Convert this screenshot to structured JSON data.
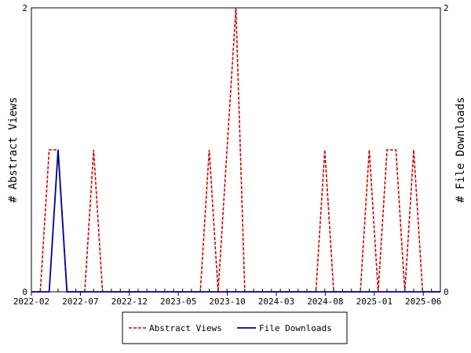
{
  "chart_data": {
    "type": "line",
    "x_tick_labels": [
      "2022-02",
      "2022-07",
      "2022-12",
      "2023-05",
      "2023-10",
      "2024-03",
      "2024-08",
      "2025-01",
      "2025-06"
    ],
    "y_left": {
      "label": "# Abstract Views",
      "ylim": [
        0,
        2
      ],
      "ticks": [
        "0",
        "2"
      ]
    },
    "y_right": {
      "label": "# File Downloads",
      "ylim": [
        0,
        2
      ],
      "ticks": [
        "0",
        "2"
      ]
    },
    "legend_position": "bottom",
    "series": [
      {
        "name": "Abstract Views",
        "axis": "left",
        "color": "#cc0000",
        "dash": "dashed",
        "values": [
          0,
          0,
          1,
          1,
          0,
          0,
          0,
          1,
          0,
          0,
          0,
          0,
          0,
          0,
          0,
          0,
          0,
          0,
          0,
          0,
          1,
          0,
          1,
          2,
          0,
          0,
          0,
          0,
          0,
          0,
          0,
          0,
          0,
          1,
          0,
          0,
          0,
          0,
          1,
          0,
          1,
          1,
          0,
          1,
          0,
          0,
          0
        ]
      },
      {
        "name": "File Downloads",
        "axis": "right",
        "color": "#000099",
        "dash": "solid",
        "values": [
          0,
          0,
          0,
          1,
          0,
          0,
          0,
          0,
          0,
          0,
          0,
          0,
          0,
          0,
          0,
          0,
          0,
          0,
          0,
          0,
          0,
          0,
          0,
          0,
          0,
          0,
          0,
          0,
          0,
          0,
          0,
          0,
          0,
          0,
          0,
          0,
          0,
          0,
          0,
          0,
          0,
          0,
          0,
          0,
          0,
          0,
          0
        ]
      }
    ]
  }
}
